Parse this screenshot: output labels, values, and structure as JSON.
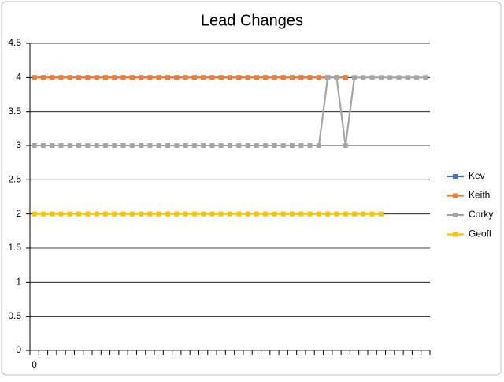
{
  "chart_data": {
    "type": "line",
    "title": "Lead Changes",
    "categories": [
      "0",
      null,
      null,
      null,
      null,
      null,
      null,
      null,
      null,
      null,
      null,
      null,
      null,
      null,
      null,
      null,
      null,
      null,
      null,
      null,
      null,
      null,
      null,
      null,
      null,
      null,
      null,
      null,
      null,
      null,
      null,
      null,
      null,
      null,
      null,
      null,
      null,
      null,
      null,
      null,
      null,
      null,
      null,
      null,
      null
    ],
    "series": [
      {
        "name": "Kev",
        "color": "#4472c4",
        "values": [
          4,
          4,
          4,
          4,
          4,
          4,
          4,
          4,
          4,
          4,
          4,
          4,
          4,
          4,
          4,
          4,
          4,
          4,
          4,
          4,
          4,
          4,
          4,
          4,
          4,
          4,
          4,
          4,
          4,
          4,
          4,
          4,
          4,
          4,
          4,
          4,
          null,
          null,
          null,
          null,
          null,
          null,
          null,
          null,
          null
        ]
      },
      {
        "name": "Keith",
        "color": "#ed7d31",
        "values": [
          4,
          4,
          4,
          4,
          4,
          4,
          4,
          4,
          4,
          4,
          4,
          4,
          4,
          4,
          4,
          4,
          4,
          4,
          4,
          4,
          4,
          4,
          4,
          4,
          4,
          4,
          4,
          4,
          4,
          4,
          4,
          4,
          4,
          4,
          4,
          4,
          null,
          null,
          null,
          null,
          null,
          null,
          null,
          null,
          null
        ]
      },
      {
        "name": "Corky",
        "color": "#a5a5a5",
        "values": [
          3,
          3,
          3,
          3,
          3,
          3,
          3,
          3,
          3,
          3,
          3,
          3,
          3,
          3,
          3,
          3,
          3,
          3,
          3,
          3,
          3,
          3,
          3,
          3,
          3,
          3,
          3,
          3,
          3,
          3,
          3,
          3,
          3,
          4,
          4,
          3,
          4,
          4,
          4,
          4,
          4,
          4,
          4,
          4,
          4
        ]
      },
      {
        "name": "Geoff",
        "color": "#ffc000",
        "values": [
          2,
          2,
          2,
          2,
          2,
          2,
          2,
          2,
          2,
          2,
          2,
          2,
          2,
          2,
          2,
          2,
          2,
          2,
          2,
          2,
          2,
          2,
          2,
          2,
          2,
          2,
          2,
          2,
          2,
          2,
          2,
          2,
          2,
          2,
          2,
          2,
          2,
          2,
          2,
          2,
          null,
          null,
          null,
          null,
          null
        ]
      }
    ],
    "ylim": [
      0,
      4.5
    ],
    "yticks": [
      0,
      0.5,
      1,
      1.5,
      2,
      2.5,
      3,
      3.5,
      4,
      4.5
    ],
    "grid": true,
    "legend": "right"
  }
}
